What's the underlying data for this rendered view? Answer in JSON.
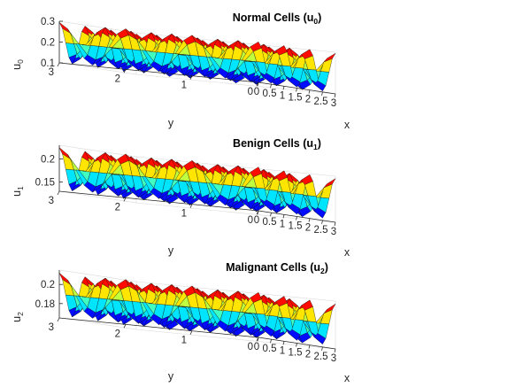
{
  "chart_data": [
    {
      "type": "surface",
      "title": "Normal Cells (u",
      "title_sub": "0",
      "zlabel": "u",
      "zlabel_sub": "0",
      "xlabel": "x",
      "ylabel": "y",
      "xticks": [
        "0",
        "0.5",
        "1",
        "1.5",
        "2",
        "2.5",
        "3"
      ],
      "yticks": [
        "0",
        "1",
        "2",
        "3"
      ],
      "zticks": [
        "0.1",
        "0.2",
        "0.3"
      ],
      "xlim": [
        0,
        3
      ],
      "ylim": [
        0,
        3
      ],
      "zlim": [
        0.1,
        0.3
      ],
      "surface": {
        "mean": 0.2,
        "amplitude": 0.095,
        "period_x": 1.0,
        "period_y": 1.0
      }
    },
    {
      "type": "surface",
      "title": "Benign Cells (u",
      "title_sub": "1",
      "zlabel": "u",
      "zlabel_sub": "1",
      "xlabel": "x",
      "ylabel": "y",
      "xticks": [
        "0",
        "0.5",
        "1",
        "1.5",
        "2",
        "2.5",
        "3"
      ],
      "yticks": [
        "0",
        "1",
        "2",
        "3"
      ],
      "zticks": [
        "0.15",
        "0.2"
      ],
      "xlim": [
        0,
        3
      ],
      "ylim": [
        0,
        3
      ],
      "zlim": [
        0.13,
        0.23
      ],
      "surface": {
        "mean": 0.18,
        "amplitude": 0.045,
        "period_x": 1.0,
        "period_y": 1.0
      }
    },
    {
      "type": "surface",
      "title": "Malignant Cells (u",
      "title_sub": "2",
      "zlabel": "u",
      "zlabel_sub": "2",
      "xlabel": "x",
      "ylabel": "y",
      "xticks": [
        "0",
        "0.5",
        "1",
        "1.5",
        "2",
        "2.5",
        "3"
      ],
      "yticks": [
        "0",
        "1",
        "2",
        "3"
      ],
      "zticks": [
        "0.18",
        "0.2"
      ],
      "xlim": [
        0,
        3
      ],
      "ylim": [
        0,
        3
      ],
      "zlim": [
        0.165,
        0.215
      ],
      "surface": {
        "mean": 0.19,
        "amplitude": 0.022,
        "period_x": 1.0,
        "period_y": 1.0
      }
    }
  ],
  "colormap": [
    "#00008f",
    "#0000ff",
    "#0080ff",
    "#00ffff",
    "#80ff80",
    "#ffff00",
    "#ff8000",
    "#ff0000",
    "#800000"
  ],
  "title_close": ")"
}
